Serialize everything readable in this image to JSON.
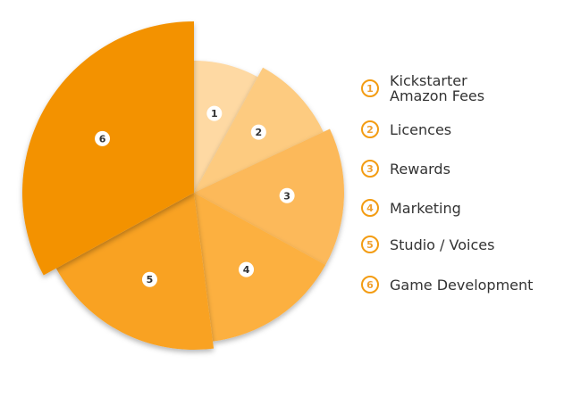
{
  "chart_data": {
    "type": "pie",
    "title": "",
    "exploded": true,
    "legend_position": "right",
    "slices": [
      {
        "badge": "1",
        "label": "Kickstarter Amazon Fees",
        "label_lines": [
          "Kickstarter",
          "Amazon Fees"
        ],
        "value": 8,
        "color": "#fed9a3"
      },
      {
        "badge": "2",
        "label": "Licences",
        "label_lines": [
          "Licences"
        ],
        "value": 10,
        "color": "#fdcb80"
      },
      {
        "badge": "3",
        "label": "Rewards",
        "label_lines": [
          "Rewards"
        ],
        "value": 15,
        "color": "#fcb95a"
      },
      {
        "badge": "4",
        "label": "Marketing",
        "label_lines": [
          "Marketing"
        ],
        "value": 15,
        "color": "#fcb040"
      },
      {
        "badge": "5",
        "label": "Studio / Voices",
        "label_lines": [
          "Studio / Voices"
        ],
        "value": 19,
        "color": "#f9a221"
      },
      {
        "badge": "6",
        "label": "Game Development",
        "label_lines": [
          "Game Development"
        ],
        "value": 33,
        "color": "#f39200"
      }
    ]
  }
}
